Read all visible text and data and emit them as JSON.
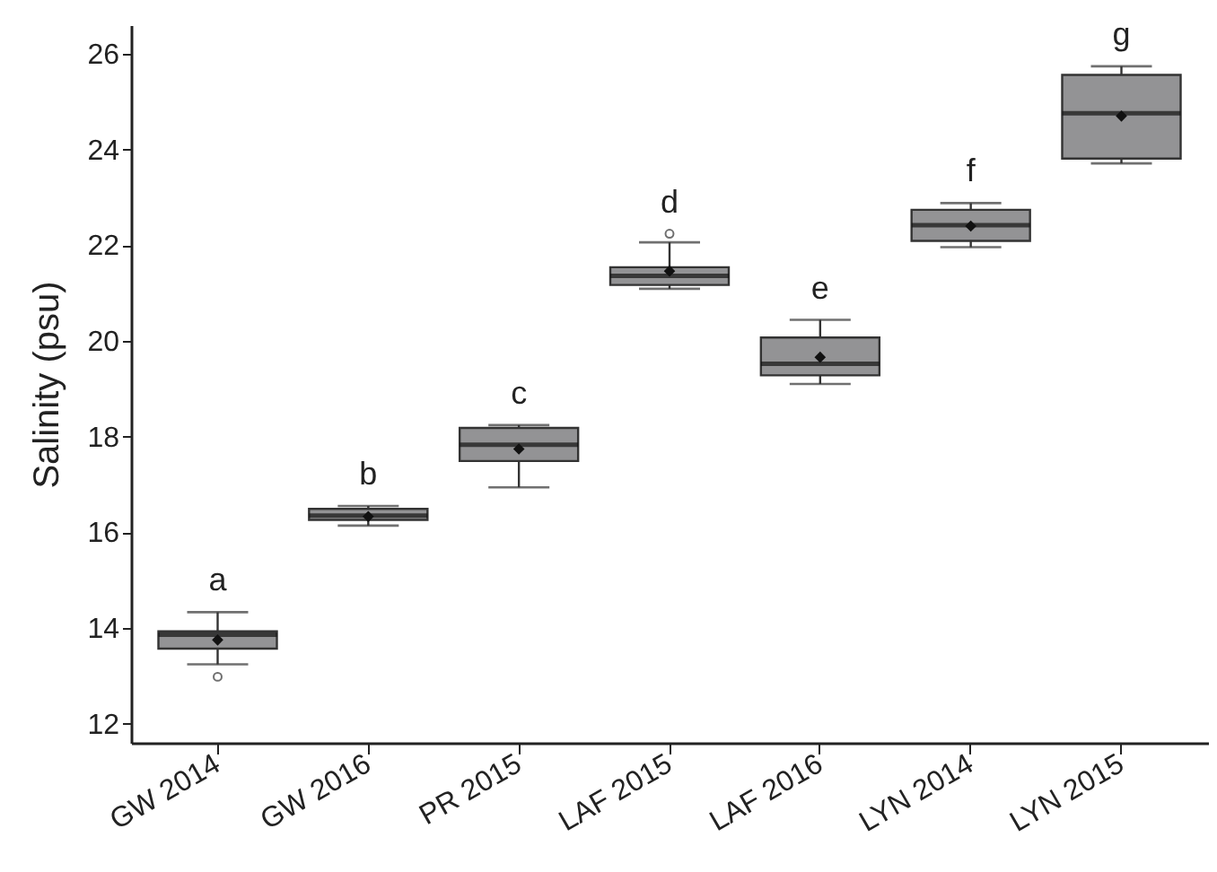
{
  "chart_data": {
    "type": "box",
    "ylabel": "Salinity (psu)",
    "categories": [
      "GW 2014",
      "GW 2016",
      "PR 2015",
      "LAF 2015",
      "LAF 2016",
      "LYN 2014",
      "LYN 2015"
    ],
    "color": "#939395",
    "ylim": [
      11.6,
      26.6
    ],
    "yticks": [
      12,
      14,
      16,
      18,
      20,
      22,
      24,
      26
    ],
    "grid": false,
    "boxes": [
      {
        "low": 13.24,
        "q1": 13.57,
        "median": 13.86,
        "q3": 13.93,
        "high": 14.33,
        "mean": 13.75,
        "outliers": [
          12.98
        ]
      },
      {
        "low": 16.14,
        "q1": 16.26,
        "median": 16.35,
        "q3": 16.49,
        "high": 16.55,
        "mean": 16.33
      },
      {
        "low": 16.94,
        "q1": 17.49,
        "median": 17.83,
        "q3": 18.18,
        "high": 18.24,
        "mean": 17.74
      },
      {
        "low": 21.09,
        "q1": 21.17,
        "median": 21.36,
        "q3": 21.54,
        "high": 22.06,
        "mean": 21.46,
        "outliers": [
          22.24
        ]
      },
      {
        "low": 19.1,
        "q1": 19.28,
        "median": 19.52,
        "q3": 20.07,
        "high": 20.44,
        "mean": 19.66
      },
      {
        "low": 21.96,
        "q1": 22.09,
        "median": 22.42,
        "q3": 22.74,
        "high": 22.88,
        "mean": 22.4
      },
      {
        "low": 23.71,
        "q1": 23.81,
        "median": 24.76,
        "q3": 25.56,
        "high": 25.74,
        "mean": 24.7
      }
    ],
    "annotations": [
      "a",
      "b",
      "c",
      "d",
      "e",
      "f",
      "g"
    ]
  }
}
